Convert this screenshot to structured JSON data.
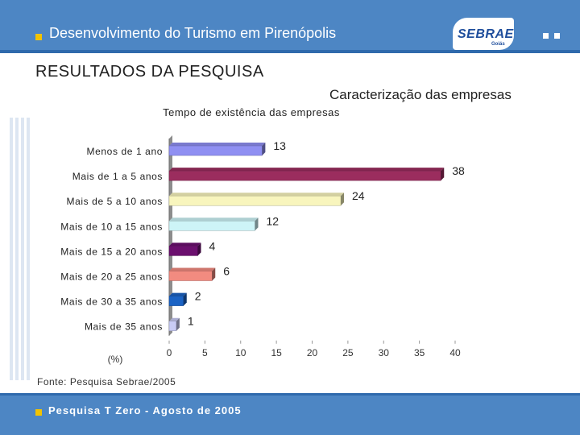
{
  "header": {
    "title": "Desenvolvimento do Turismo em Pirenópolis"
  },
  "logo": {
    "name": "SEBRAE",
    "region": "Goiás"
  },
  "section_title": "RESULTADOS DA PESQUISA",
  "subtitle": "Caracterização das empresas",
  "source": "Fonte: Pesquisa Sebrae/2005",
  "footer": {
    "text": "Pesquisa T Zero - Agosto de 2005"
  },
  "colors": {
    "header_bg": "#4d86c4",
    "bullet": "#f2c300",
    "bars": [
      "#8f8ff2",
      "#9b2d5e",
      "#f8f5bd",
      "#cdf4f7",
      "#6b0f6e",
      "#f28b80",
      "#1b63c4",
      "#c9ccf6"
    ]
  },
  "chart_data": {
    "type": "bar",
    "orientation": "horizontal",
    "title": "Tempo de existência das empresas",
    "xlabel": "(%)",
    "categories": [
      "Menos de 1 ano",
      "Mais de 1 a 5 anos",
      "Mais de 5 a 10 anos",
      "Mais de 10 a 15 anos",
      "Mais de 15 a 20 anos",
      "Mais de 20 a 25 anos",
      "Mais de 30 a 35 anos",
      "Mais de 35 anos"
    ],
    "values": [
      13,
      38,
      24,
      12,
      4,
      6,
      2,
      1
    ],
    "data_labels": [
      "13",
      "38",
      "24",
      "12",
      "4",
      "6",
      "2",
      "1"
    ],
    "xlim": [
      0,
      40
    ],
    "ticks": [
      0,
      5,
      10,
      15,
      20,
      25,
      30,
      35,
      40
    ],
    "tick_labels": [
      "0",
      "5",
      "10",
      "15",
      "20",
      "25",
      "30",
      "35",
      "40"
    ],
    "grid": false,
    "legend": "none"
  }
}
